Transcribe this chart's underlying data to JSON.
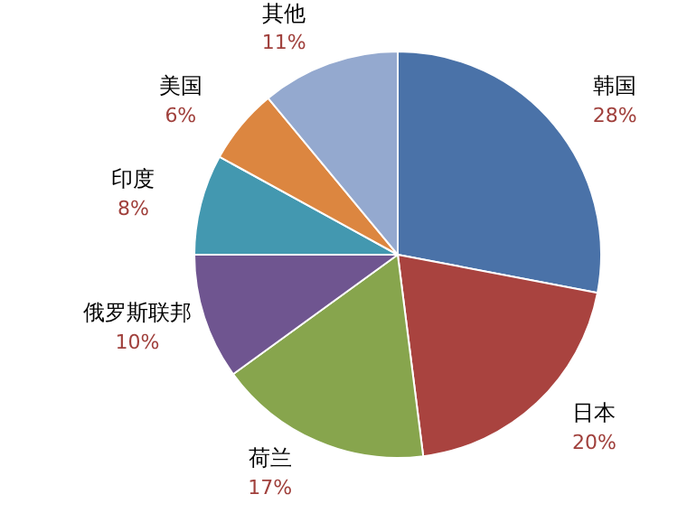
{
  "chart_data": {
    "type": "pie",
    "categories": [
      "韩国",
      "日本",
      "荷兰",
      "俄罗斯联邦",
      "印度",
      "美国",
      "其他"
    ],
    "values": [
      28,
      20,
      17,
      10,
      8,
      6,
      11
    ],
    "value_labels": [
      "28%",
      "20%",
      "17%",
      "10%",
      "8%",
      "6%",
      "11%"
    ],
    "colors": [
      "#4a72a8",
      "#a9433f",
      "#87a54d",
      "#6f5590",
      "#4398b0",
      "#dc8640",
      "#94a9cf"
    ],
    "legend": false
  }
}
